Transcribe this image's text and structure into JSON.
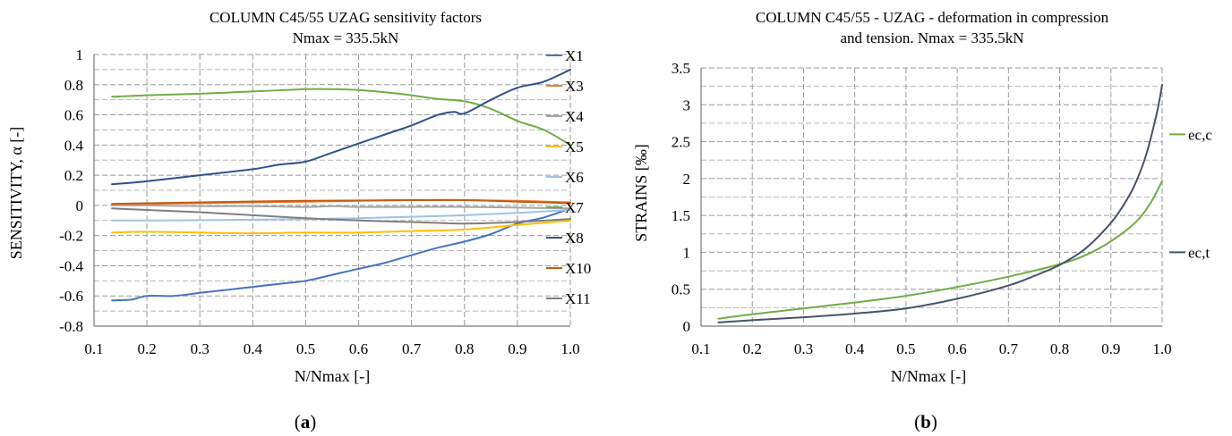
{
  "charts": [
    {
      "type": "line",
      "title": "COLUMN C45/55 UZAG sensitivity factors",
      "subtitle": "Nmax = 335.5kN",
      "xlabel": "N/Nmax [-]",
      "ylabel": "SENSITIVITY, α [-]",
      "xlim": [
        0.1,
        1.0
      ],
      "ylim": [
        -0.8,
        1.0
      ],
      "xticks": [
        "0.1",
        "0.2",
        "0.3",
        "0.4",
        "0.5",
        "0.6",
        "0.7",
        "0.8",
        "0.9",
        "1.0"
      ],
      "yticks": [
        "-0.8",
        "-0.6",
        "-0.4",
        "-0.2",
        "0",
        "0.2",
        "0.4",
        "0.6",
        "0.8",
        "1"
      ],
      "grid": true,
      "legend_position": "right",
      "caption_open": "(",
      "caption_letter": "a",
      "caption_close": ")",
      "series": [
        {
          "name": "X1",
          "color": "#4472C4",
          "x": [
            0.134,
            0.17,
            0.2,
            0.25,
            0.3,
            0.35,
            0.4,
            0.45,
            0.5,
            0.55,
            0.6,
            0.65,
            0.7,
            0.75,
            0.8,
            0.85,
            0.9,
            0.95,
            1.0
          ],
          "y": [
            -0.63,
            -0.625,
            -0.6,
            -0.6,
            -0.58,
            -0.56,
            -0.54,
            -0.52,
            -0.5,
            -0.46,
            -0.42,
            -0.38,
            -0.33,
            -0.28,
            -0.24,
            -0.19,
            -0.12,
            -0.08,
            -0.02
          ]
        },
        {
          "name": "X3",
          "color": "#ED7D31",
          "x": [
            0.134,
            0.2,
            0.3,
            0.4,
            0.5,
            0.6,
            0.7,
            0.8,
            0.9,
            1.0
          ],
          "y": [
            0.005,
            0.01,
            0.015,
            0.02,
            0.025,
            0.03,
            0.035,
            0.035,
            0.03,
            0.02
          ]
        },
        {
          "name": "X4",
          "color": "#A5A5A5",
          "x": [
            0.134,
            0.2,
            0.3,
            0.4,
            0.5,
            0.55,
            0.6,
            0.7,
            0.8,
            0.9,
            1.0
          ],
          "y": [
            0.0,
            0.0,
            -0.005,
            -0.005,
            -0.01,
            -0.005,
            -0.01,
            -0.01,
            -0.01,
            -0.015,
            -0.02
          ]
        },
        {
          "name": "X5",
          "color": "#FFC000",
          "x": [
            0.134,
            0.2,
            0.3,
            0.4,
            0.5,
            0.6,
            0.7,
            0.8,
            0.9,
            1.0
          ],
          "y": [
            -0.18,
            -0.175,
            -0.18,
            -0.185,
            -0.18,
            -0.18,
            -0.17,
            -0.16,
            -0.13,
            -0.1
          ]
        },
        {
          "name": "X6",
          "color": "#9DC3E6",
          "x": [
            0.134,
            0.2,
            0.3,
            0.4,
            0.5,
            0.6,
            0.7,
            0.8,
            0.9,
            1.0
          ],
          "y": [
            -0.1,
            -0.1,
            -0.098,
            -0.095,
            -0.09,
            -0.085,
            -0.075,
            -0.065,
            -0.05,
            -0.03
          ]
        },
        {
          "name": "X7",
          "color": "#70AD47",
          "x": [
            0.134,
            0.2,
            0.3,
            0.4,
            0.5,
            0.55,
            0.6,
            0.65,
            0.7,
            0.75,
            0.8,
            0.85,
            0.9,
            0.95,
            1.0
          ],
          "y": [
            0.72,
            0.73,
            0.74,
            0.755,
            0.77,
            0.77,
            0.765,
            0.75,
            0.73,
            0.705,
            0.69,
            0.64,
            0.56,
            0.5,
            0.4
          ]
        },
        {
          "name": "X8",
          "color": "#2F4F8F",
          "x": [
            0.134,
            0.2,
            0.3,
            0.4,
            0.45,
            0.5,
            0.55,
            0.6,
            0.65,
            0.7,
            0.75,
            0.78,
            0.8,
            0.85,
            0.9,
            0.95,
            1.0
          ],
          "y": [
            0.14,
            0.16,
            0.2,
            0.24,
            0.27,
            0.29,
            0.35,
            0.41,
            0.47,
            0.53,
            0.6,
            0.62,
            0.61,
            0.7,
            0.78,
            0.82,
            0.9
          ]
        },
        {
          "name": "X10",
          "color": "#C55A11",
          "x": [
            0.134,
            0.3,
            0.5,
            0.7,
            0.8,
            0.9,
            1.0
          ],
          "y": [
            0.01,
            0.02,
            0.03,
            0.035,
            0.035,
            0.025,
            0.015
          ]
        },
        {
          "name": "X11",
          "color": "#7F7F7F",
          "x": [
            0.134,
            0.2,
            0.3,
            0.4,
            0.5,
            0.6,
            0.7,
            0.8,
            0.9,
            1.0
          ],
          "y": [
            -0.02,
            -0.03,
            -0.045,
            -0.065,
            -0.085,
            -0.1,
            -0.11,
            -0.12,
            -0.11,
            -0.09
          ]
        }
      ]
    },
    {
      "type": "line",
      "title": "COLUMN C45/55 - UZAG - deformation in compression",
      "subtitle": "and tension. Nmax = 335.5kN",
      "xlabel": "N/Nmax [-]",
      "ylabel": "STRAINS [‰]",
      "xlim": [
        0.1,
        1.0
      ],
      "ylim": [
        0,
        3.5
      ],
      "xticks": [
        "0.1",
        "0.2",
        "0.3",
        "0.4",
        "0.5",
        "0.6",
        "0.7",
        "0.8",
        "0.9",
        "1.0"
      ],
      "yticks": [
        "0",
        "0.5",
        "1",
        "1.5",
        "2",
        "2.5",
        "3",
        "3.5"
      ],
      "grid": true,
      "legend_position": "right",
      "caption_open": "(",
      "caption_letter": "b",
      "caption_close": ")",
      "series": [
        {
          "name": "ec,c",
          "color": "#70AD47",
          "x": [
            0.134,
            0.2,
            0.3,
            0.4,
            0.5,
            0.6,
            0.7,
            0.8,
            0.85,
            0.9,
            0.95,
            0.98,
            1.0
          ],
          "y": [
            0.1,
            0.16,
            0.24,
            0.32,
            0.41,
            0.53,
            0.67,
            0.84,
            0.96,
            1.15,
            1.42,
            1.7,
            1.97
          ]
        },
        {
          "name": "ec,t",
          "color": "#44546A",
          "x": [
            0.134,
            0.2,
            0.3,
            0.4,
            0.5,
            0.6,
            0.7,
            0.75,
            0.8,
            0.85,
            0.9,
            0.93,
            0.95,
            0.97,
            0.99,
            1.0
          ],
          "y": [
            0.05,
            0.08,
            0.12,
            0.17,
            0.24,
            0.37,
            0.55,
            0.68,
            0.83,
            1.05,
            1.4,
            1.7,
            1.97,
            2.35,
            2.9,
            3.27
          ]
        }
      ]
    }
  ]
}
